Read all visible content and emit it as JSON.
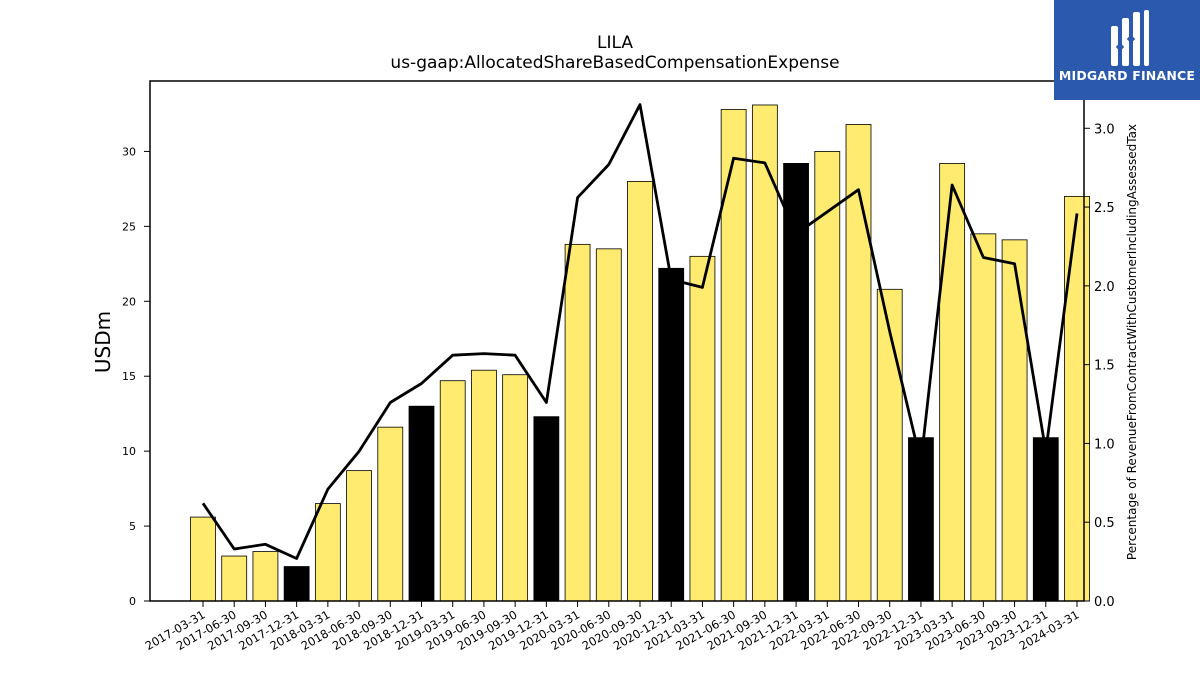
{
  "logo": {
    "text": "MIDGARD FINANCE"
  },
  "chart_data": {
    "type": "bar",
    "title": "LILA",
    "subtitle": "us-gaap:AllocatedShareBasedCompensationExpense",
    "ylabel": "USDm",
    "y2label": "Percentage of RevenueFromContractWithCustomerIncludingAssessedTax",
    "ylim": [
      0,
      34.7
    ],
    "y2lim": [
      0,
      3.3
    ],
    "yticks": [
      0,
      5,
      10,
      15,
      20,
      25,
      30
    ],
    "y2ticks": [
      "0.0",
      "0.5",
      "1.0",
      "1.5",
      "2.0",
      "2.5",
      "3.0"
    ],
    "categories": [
      "2017-03-31",
      "2017-06-30",
      "2017-09-30",
      "2017-12-31",
      "2018-03-31",
      "2018-06-30",
      "2018-09-30",
      "2018-12-31",
      "2019-03-31",
      "2019-06-30",
      "2019-09-30",
      "2019-12-31",
      "2020-03-31",
      "2020-06-30",
      "2020-09-30",
      "2020-12-31",
      "2021-03-31",
      "2021-06-30",
      "2021-09-30",
      "2021-12-31",
      "2022-03-31",
      "2022-06-30",
      "2022-09-30",
      "2022-12-31",
      "2023-03-31",
      "2023-06-30",
      "2023-09-30",
      "2023-12-31",
      "2024-03-31"
    ],
    "series": [
      {
        "type": "bar",
        "values": [
          5.6,
          3.0,
          3.3,
          2.3,
          6.5,
          8.7,
          11.6,
          13.0,
          14.7,
          15.4,
          15.1,
          12.3,
          23.8,
          23.5,
          28.0,
          22.2,
          23.0,
          32.8,
          33.1,
          29.2,
          30.0,
          31.8,
          20.8,
          10.9,
          29.2,
          24.5,
          24.1,
          10.9,
          27.0
        ],
        "highlight": [
          false,
          false,
          false,
          true,
          false,
          false,
          false,
          true,
          false,
          false,
          false,
          true,
          false,
          false,
          false,
          true,
          false,
          false,
          false,
          true,
          false,
          false,
          false,
          true,
          false,
          false,
          false,
          true,
          false
        ]
      },
      {
        "type": "line",
        "axis": "right",
        "values": [
          0.62,
          0.33,
          0.36,
          0.27,
          0.71,
          0.95,
          1.26,
          1.38,
          1.56,
          1.57,
          1.56,
          1.26,
          2.56,
          2.77,
          3.15,
          2.04,
          1.99,
          2.81,
          2.78,
          2.33,
          2.47,
          2.61,
          1.71,
          0.88,
          2.64,
          2.18,
          2.14,
          0.95,
          2.46
        ]
      }
    ],
    "colors": {
      "bar": "#ffeb6f",
      "bar_highlight": "#000000",
      "line": "#000000"
    }
  }
}
